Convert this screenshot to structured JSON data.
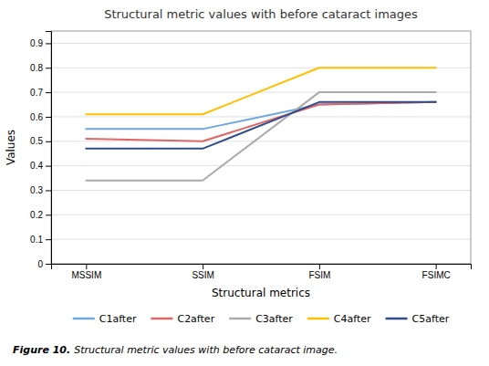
{
  "chart_data": {
    "type": "line",
    "title": "Structural metric values with before cataract images",
    "x_label": "Structural metrics",
    "y_label": "Values",
    "annotations": [
      "Figure 10.",
      "Structural metric values with before cataract image."
    ],
    "categories": [
      "MSSIM",
      "SSIM",
      "FSIM",
      "FSIMC"
    ],
    "series": [
      {
        "name": "C1after",
        "color": "#6fa8dc",
        "values": [
          0.55,
          0.55,
          0.65,
          0.66
        ]
      },
      {
        "name": "C2after",
        "color": "#e06666",
        "values": [
          0.51,
          0.5,
          0.65,
          0.66
        ]
      },
      {
        "name": "C3after",
        "color": "#aaaaaa",
        "values": [
          0.34,
          0.34,
          0.7,
          0.7
        ]
      },
      {
        "name": "C4after",
        "color": "#ffc000",
        "values": [
          0.61,
          0.61,
          0.8,
          0.8
        ]
      },
      {
        "name": "C5after",
        "color": "#2e4d8a",
        "values": [
          0.47,
          0.47,
          0.66,
          0.66
        ]
      }
    ],
    "ylim": [
      0,
      0.95
    ],
    "yticks": [
      0,
      0.1,
      0.2,
      0.3,
      0.4,
      0.5,
      0.6,
      0.7,
      0.8,
      0.9
    ],
    "grid": true,
    "legend": "bottom"
  }
}
